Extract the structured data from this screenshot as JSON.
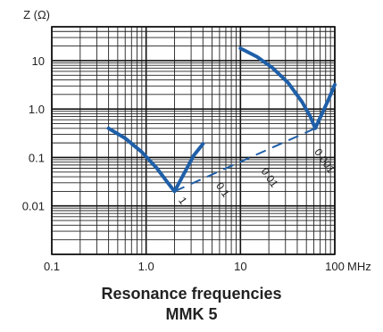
{
  "chart_data": {
    "type": "line",
    "y_axis_title": "Z (Ω)",
    "x_unit": "MHz",
    "x_scale": "log",
    "y_scale": "log",
    "xlim": [
      0.1,
      100
    ],
    "ylim": [
      0.001,
      50
    ],
    "grid": true,
    "x_tick_labels": [
      {
        "value": 0.1,
        "label": "0.1"
      },
      {
        "value": 1,
        "label": "1.0"
      },
      {
        "value": 10,
        "label": "10"
      },
      {
        "value": 100,
        "label": "100"
      }
    ],
    "y_tick_labels": [
      {
        "value": 10,
        "label": "10"
      },
      {
        "value": 1,
        "label": "1.0"
      },
      {
        "value": 0.1,
        "label": "0.1"
      },
      {
        "value": 0.01,
        "label": "0.01"
      }
    ],
    "series": [
      {
        "label": "1",
        "x": [
          0.4,
          0.6,
          0.9,
          1.3,
          1.7,
          2.0,
          2.5,
          3.2,
          4.0
        ],
        "y": [
          0.4,
          0.25,
          0.13,
          0.06,
          0.03,
          0.02,
          0.045,
          0.11,
          0.19
        ]
      },
      {
        "label": "0.001",
        "x": [
          10,
          15,
          22,
          32,
          45,
          55,
          62,
          72,
          85,
          100
        ],
        "y": [
          18,
          12,
          7,
          3.5,
          1.4,
          0.7,
          0.4,
          0.75,
          1.5,
          3.2
        ]
      }
    ],
    "resonance_line": {
      "x": [
        2.0,
        62
      ],
      "y": [
        0.02,
        0.4
      ]
    },
    "annotations": [
      {
        "text": "1",
        "x": 2.0,
        "y": 0.02
      },
      {
        "text": "0.1",
        "x": 5.0,
        "y": 0.04
      },
      {
        "text": "0.01",
        "x": 15,
        "y": 0.08
      },
      {
        "text": "0.001",
        "x": 55,
        "y": 0.2
      }
    ],
    "colors": {
      "curve": "#1f5fa8",
      "grid_major": "#111111",
      "grid_minor": "#222222",
      "text": "#222222"
    }
  },
  "caption": {
    "line1": "Resonance frequencies",
    "line2": "MMK 5"
  }
}
